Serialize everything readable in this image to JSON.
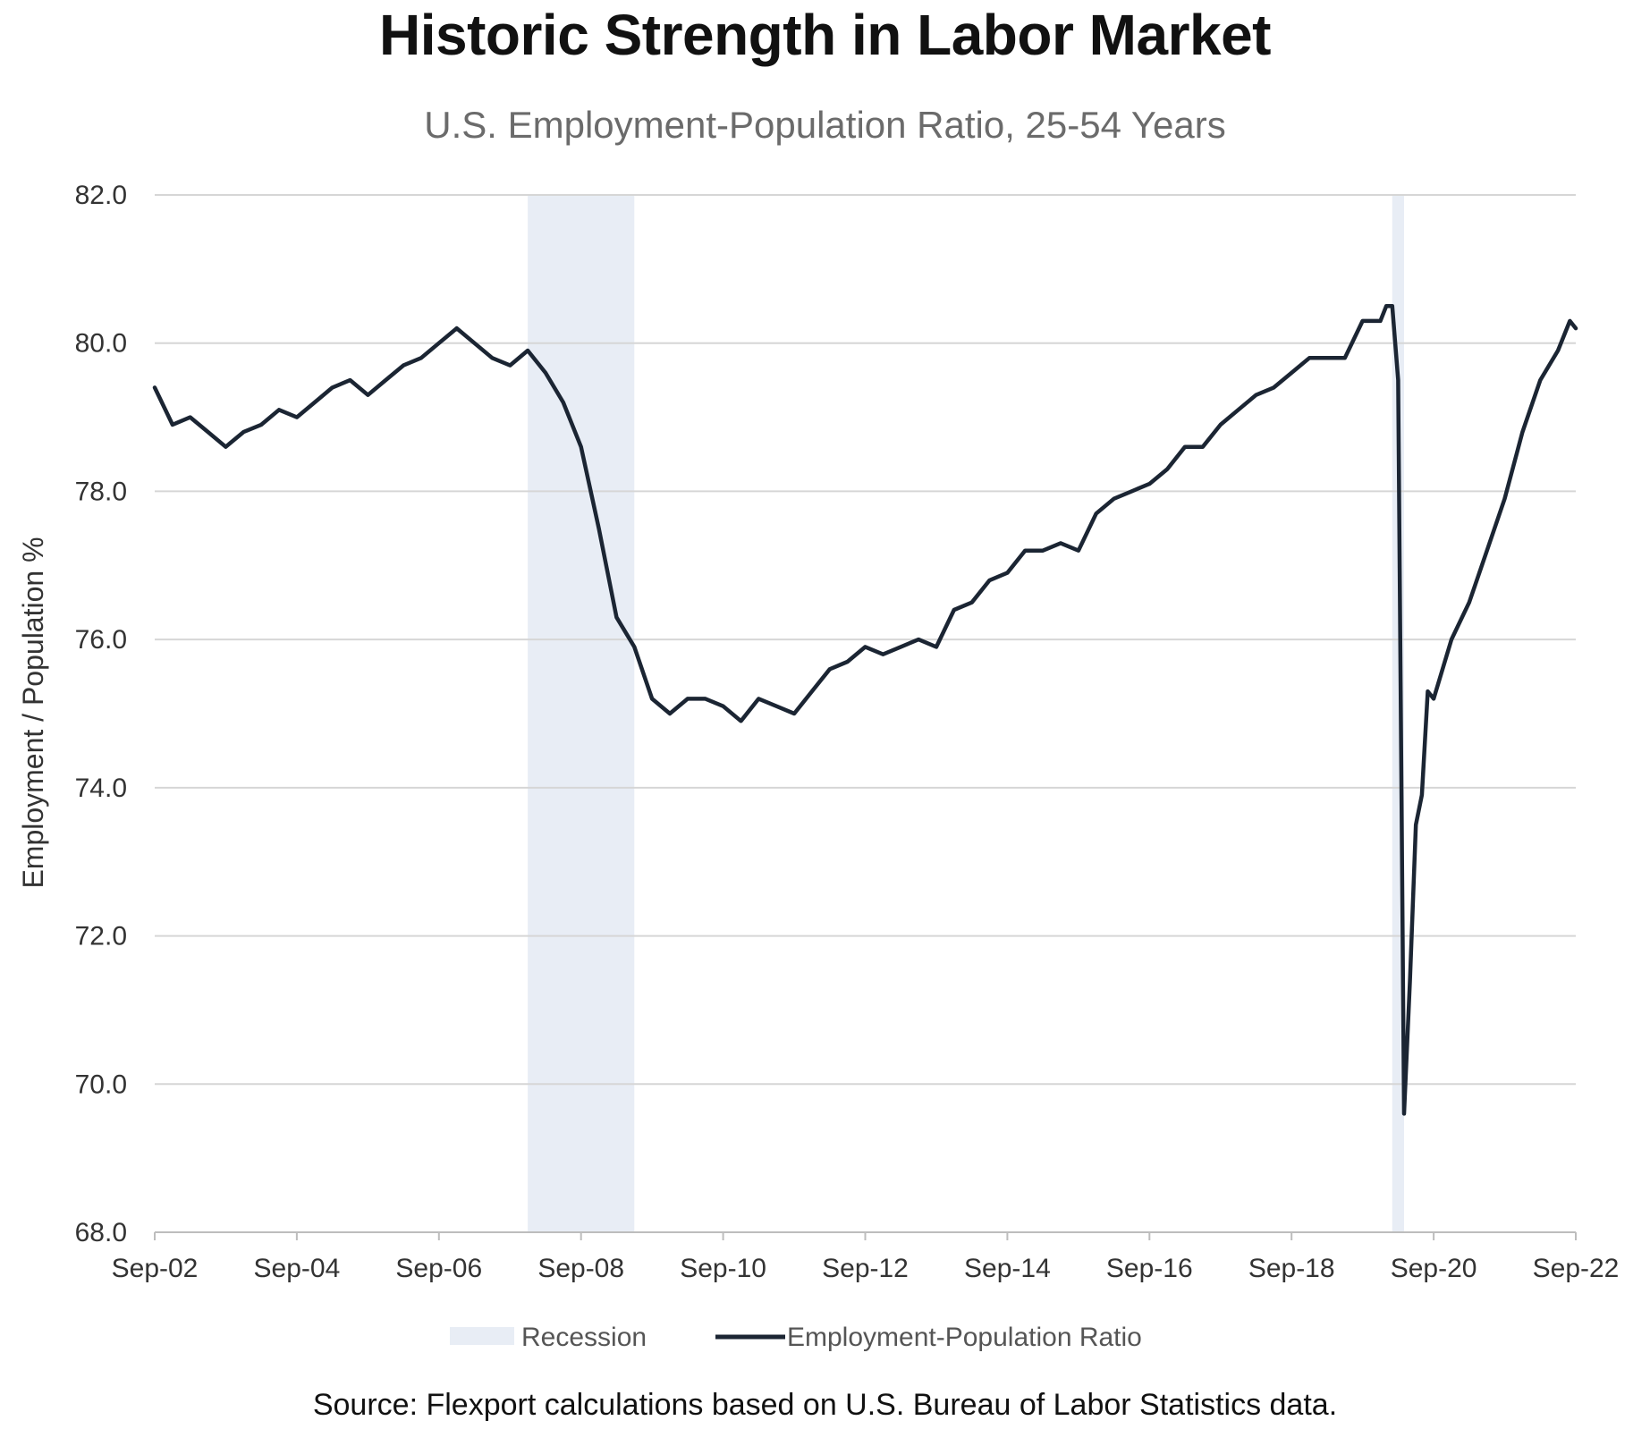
{
  "chart_data": {
    "type": "line",
    "title": "Historic Strength in Labor Market",
    "subtitle": "U.S. Employment-Population Ratio, 25-54 Years",
    "ylabel": "Employment / Population %",
    "xlabel": "",
    "ylim": [
      68.0,
      82.0
    ],
    "y_ticks": [
      "68.0",
      "70.0",
      "72.0",
      "74.0",
      "76.0",
      "78.0",
      "80.0",
      "82.0"
    ],
    "x_tick_labels": [
      "Sep-02",
      "Sep-04",
      "Sep-06",
      "Sep-08",
      "Sep-10",
      "Sep-12",
      "Sep-14",
      "Sep-16",
      "Sep-18",
      "Sep-20",
      "Sep-22"
    ],
    "grid": "horizontal",
    "legend_position": "bottom-center",
    "recessions": [
      {
        "start": "Dec-07",
        "end": "Jun-09"
      },
      {
        "start": "Feb-20",
        "end": "Apr-20"
      }
    ],
    "series": [
      {
        "name": "Employment-Population Ratio",
        "color": "#1b2533",
        "points": [
          [
            "Sep-02",
            79.4
          ],
          [
            "Dec-02",
            78.9
          ],
          [
            "Mar-03",
            79.0
          ],
          [
            "Jun-03",
            78.8
          ],
          [
            "Sep-03",
            78.6
          ],
          [
            "Dec-03",
            78.8
          ],
          [
            "Mar-04",
            78.9
          ],
          [
            "Jun-04",
            79.1
          ],
          [
            "Sep-04",
            79.0
          ],
          [
            "Dec-04",
            79.2
          ],
          [
            "Mar-05",
            79.4
          ],
          [
            "Jun-05",
            79.5
          ],
          [
            "Sep-05",
            79.3
          ],
          [
            "Dec-05",
            79.5
          ],
          [
            "Mar-06",
            79.7
          ],
          [
            "Jun-06",
            79.8
          ],
          [
            "Sep-06",
            80.0
          ],
          [
            "Dec-06",
            80.2
          ],
          [
            "Mar-07",
            80.0
          ],
          [
            "Jun-07",
            79.8
          ],
          [
            "Sep-07",
            79.7
          ],
          [
            "Dec-07",
            79.9
          ],
          [
            "Mar-08",
            79.6
          ],
          [
            "Jun-08",
            79.2
          ],
          [
            "Sep-08",
            78.6
          ],
          [
            "Dec-08",
            77.5
          ],
          [
            "Mar-09",
            76.3
          ],
          [
            "Jun-09",
            75.9
          ],
          [
            "Sep-09",
            75.2
          ],
          [
            "Dec-09",
            75.0
          ],
          [
            "Mar-10",
            75.2
          ],
          [
            "Jun-10",
            75.2
          ],
          [
            "Sep-10",
            75.1
          ],
          [
            "Dec-10",
            74.9
          ],
          [
            "Mar-11",
            75.2
          ],
          [
            "Jun-11",
            75.1
          ],
          [
            "Sep-11",
            75.0
          ],
          [
            "Dec-11",
            75.3
          ],
          [
            "Mar-12",
            75.6
          ],
          [
            "Jun-12",
            75.7
          ],
          [
            "Sep-12",
            75.9
          ],
          [
            "Dec-12",
            75.8
          ],
          [
            "Mar-13",
            75.9
          ],
          [
            "Jun-13",
            76.0
          ],
          [
            "Sep-13",
            75.9
          ],
          [
            "Dec-13",
            76.4
          ],
          [
            "Mar-14",
            76.5
          ],
          [
            "Jun-14",
            76.8
          ],
          [
            "Sep-14",
            76.9
          ],
          [
            "Dec-14",
            77.2
          ],
          [
            "Mar-15",
            77.2
          ],
          [
            "Jun-15",
            77.3
          ],
          [
            "Sep-15",
            77.2
          ],
          [
            "Dec-15",
            77.7
          ],
          [
            "Mar-16",
            77.9
          ],
          [
            "Jun-16",
            78.0
          ],
          [
            "Sep-16",
            78.1
          ],
          [
            "Dec-16",
            78.3
          ],
          [
            "Mar-17",
            78.6
          ],
          [
            "Jun-17",
            78.6
          ],
          [
            "Sep-17",
            78.9
          ],
          [
            "Dec-17",
            79.1
          ],
          [
            "Mar-18",
            79.3
          ],
          [
            "Jun-18",
            79.4
          ],
          [
            "Sep-18",
            79.6
          ],
          [
            "Dec-18",
            79.8
          ],
          [
            "Mar-19",
            79.8
          ],
          [
            "Jun-19",
            79.8
          ],
          [
            "Sep-19",
            80.3
          ],
          [
            "Dec-19",
            80.3
          ],
          [
            "Jan-20",
            80.5
          ],
          [
            "Feb-20",
            80.5
          ],
          [
            "Mar-20",
            79.5
          ],
          [
            "Apr-20",
            69.6
          ],
          [
            "May-20",
            71.4
          ],
          [
            "Jun-20",
            73.5
          ],
          [
            "Jul-20",
            73.9
          ],
          [
            "Aug-20",
            75.3
          ],
          [
            "Sep-20",
            75.2
          ],
          [
            "Dec-20",
            76.0
          ],
          [
            "Mar-21",
            76.5
          ],
          [
            "Jun-21",
            77.2
          ],
          [
            "Sep-21",
            77.9
          ],
          [
            "Dec-21",
            78.8
          ],
          [
            "Mar-22",
            79.5
          ],
          [
            "Jun-22",
            79.9
          ],
          [
            "Aug-22",
            80.3
          ],
          [
            "Sep-22",
            80.2
          ]
        ]
      }
    ],
    "legend": {
      "items": [
        {
          "label": "Recession",
          "color": "#e8edf5",
          "kind": "area"
        },
        {
          "label": "Employment-Population Ratio",
          "color": "#1b2533",
          "kind": "line"
        }
      ]
    },
    "source": "Source: Flexport calculations based on U.S. Bureau of Labor Statistics data."
  }
}
